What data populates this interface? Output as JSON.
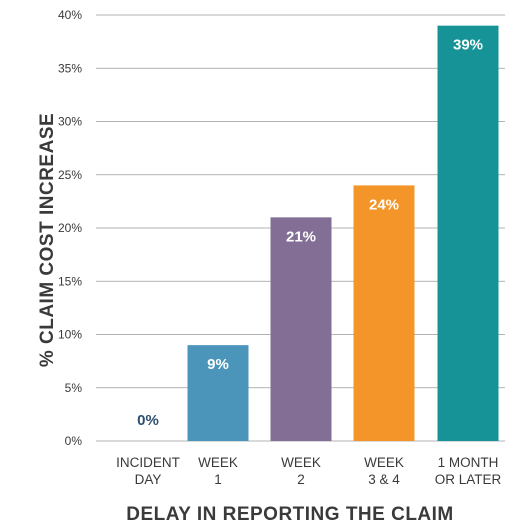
{
  "chart_data": {
    "type": "bar",
    "xlabel": "DELAY IN REPORTING THE CLAIM",
    "ylabel": "% CLAIM COST INCREASE",
    "ylim": [
      0,
      40
    ],
    "yticks": [
      {
        "value": 0,
        "label": "0%"
      },
      {
        "value": 5,
        "label": "5%"
      },
      {
        "value": 10,
        "label": "10%"
      },
      {
        "value": 15,
        "label": "15%"
      },
      {
        "value": 20,
        "label": "20%"
      },
      {
        "value": 25,
        "label": "25%"
      },
      {
        "value": 30,
        "label": "30%"
      },
      {
        "value": 35,
        "label": "35%"
      },
      {
        "value": 40,
        "label": "40%"
      }
    ],
    "grid": true,
    "categories": [
      [
        "INCIDENT",
        "DAY"
      ],
      [
        "WEEK",
        "1"
      ],
      [
        "WEEK",
        "2"
      ],
      [
        "WEEK",
        "3 & 4"
      ],
      [
        "1 MONTH",
        "OR LATER"
      ]
    ],
    "values": [
      0,
      9,
      21,
      24,
      39
    ],
    "data_labels": [
      "0%",
      "9%",
      "21%",
      "24%",
      "39%"
    ],
    "colors": [
      "#2f4f6f",
      "#4a95b9",
      "#836f95",
      "#f4952a",
      "#159396"
    ],
    "label_colors": [
      "#2f4f6f",
      "#ffffff",
      "#ffffff",
      "#ffffff",
      "#ffffff"
    ]
  }
}
